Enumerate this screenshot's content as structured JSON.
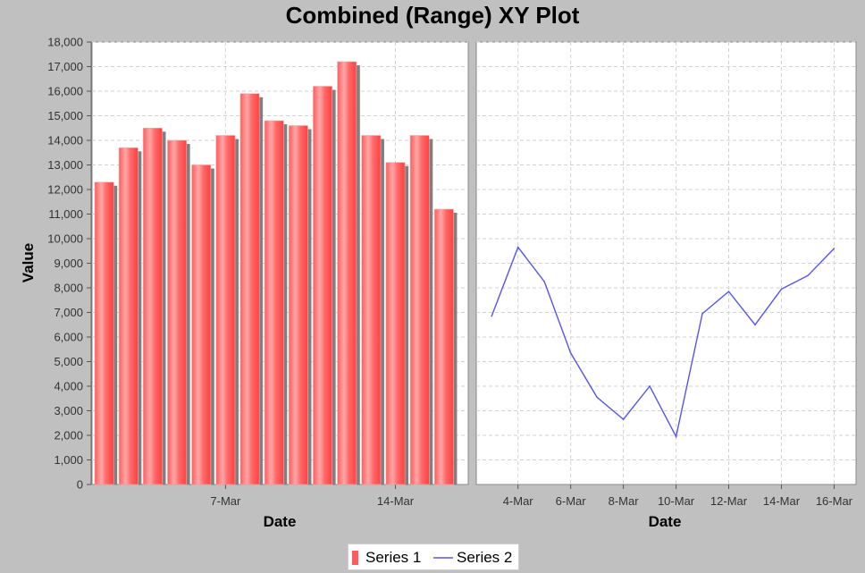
{
  "chart_data": {
    "type": "combined",
    "title": "Combined (Range) XY Plot",
    "ylabel": "Value",
    "ylim": [
      0,
      18000
    ],
    "yticks": [
      "0",
      "1,000",
      "2,000",
      "3,000",
      "4,000",
      "5,000",
      "6,000",
      "7,000",
      "8,000",
      "9,000",
      "10,000",
      "11,000",
      "12,000",
      "13,000",
      "14,000",
      "15,000",
      "16,000",
      "17,000",
      "18,000"
    ],
    "grid": true,
    "legend_position": "bottom",
    "subplots": [
      {
        "type": "bar",
        "xlabel": "Date",
        "xlim": [
          "2024-03-01T12:00",
          "2024-03-17T00:00"
        ],
        "xticks": [
          {
            "date": "2024-03-07",
            "label": "7-Mar"
          },
          {
            "date": "2024-03-14",
            "label": "14-Mar"
          }
        ],
        "series": [
          {
            "name": "Series 1",
            "x": [
              "2024-03-02",
              "2024-03-03",
              "2024-03-04",
              "2024-03-05",
              "2024-03-06",
              "2024-03-07",
              "2024-03-08",
              "2024-03-09",
              "2024-03-10",
              "2024-03-11",
              "2024-03-12",
              "2024-03-13",
              "2024-03-14",
              "2024-03-15",
              "2024-03-16"
            ],
            "values": [
              12300,
              13700,
              14500,
              14000,
              13000,
              14200,
              15900,
              14800,
              14600,
              16200,
              17200,
              14200,
              13100,
              14200,
              11200
            ]
          }
        ]
      },
      {
        "type": "line",
        "xlabel": "Date",
        "xlim": [
          "2024-03-02T10:00",
          "2024-03-16T20:00"
        ],
        "xticks": [
          {
            "date": "2024-03-04",
            "label": "4-Mar"
          },
          {
            "date": "2024-03-06",
            "label": "6-Mar"
          },
          {
            "date": "2024-03-08",
            "label": "8-Mar"
          },
          {
            "date": "2024-03-10",
            "label": "10-Mar"
          },
          {
            "date": "2024-03-12",
            "label": "12-Mar"
          },
          {
            "date": "2024-03-14",
            "label": "14-Mar"
          },
          {
            "date": "2024-03-16",
            "label": "16-Mar"
          }
        ],
        "series": [
          {
            "name": "Series 2",
            "x": [
              "2024-03-03",
              "2024-03-04",
              "2024-03-05",
              "2024-03-06",
              "2024-03-07",
              "2024-03-08",
              "2024-03-09",
              "2024-03-10",
              "2024-03-11",
              "2024-03-12",
              "2024-03-13",
              "2024-03-14",
              "2024-03-15",
              "2024-03-16"
            ],
            "values": [
              6850,
              9650,
              8250,
              5350,
              3550,
              2650,
              4000,
              1950,
              6950,
              7850,
              6500,
              7950,
              8500,
              9600
            ]
          }
        ]
      }
    ],
    "legend": [
      "Series 1",
      "Series 2"
    ],
    "colors": {
      "series1": "#ff5c5c",
      "series1_highlight": "#ffa8a8",
      "series1_shadow": "#808080",
      "series2": "#5555ee",
      "grid": "#d2d2d2",
      "plot_background": "#ffffff",
      "background": "#c0c0c0"
    }
  }
}
